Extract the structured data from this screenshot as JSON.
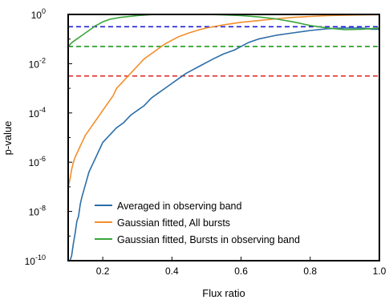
{
  "chart_data": {
    "type": "line",
    "title": "",
    "xlabel": "Flux ratio",
    "ylabel": "p-value",
    "xlim": [
      0.1,
      1.0
    ],
    "ylim_log10": [
      -10,
      0
    ],
    "yscale": "log",
    "grid": false,
    "legend_placement": "lower-right",
    "x_ticks": [
      {
        "value": 0.2,
        "label": "0.2"
      },
      {
        "value": 0.4,
        "label": "0.4"
      },
      {
        "value": 0.6,
        "label": "0.6"
      },
      {
        "value": 0.8,
        "label": "0.8"
      },
      {
        "value": 1.0,
        "label": "1.0"
      }
    ],
    "y_ticks": [
      {
        "exp": 0,
        "base": "10",
        "sup": "0"
      },
      {
        "exp": -2,
        "base": "10",
        "sup": "-2"
      },
      {
        "exp": -4,
        "base": "10",
        "sup": "-4"
      },
      {
        "exp": -6,
        "base": "10",
        "sup": "-6"
      },
      {
        "exp": -8,
        "base": "10",
        "sup": "-8"
      },
      {
        "exp": -10,
        "base": "10",
        "sup": "-10"
      }
    ],
    "series": [
      {
        "name": "Averaged in observing band",
        "color": "#2b6ea8",
        "x": [
          0.105,
          0.11,
          0.115,
          0.12,
          0.125,
          0.13,
          0.135,
          0.14,
          0.15,
          0.16,
          0.17,
          0.18,
          0.19,
          0.2,
          0.22,
          0.24,
          0.26,
          0.28,
          0.3,
          0.32,
          0.34,
          0.36,
          0.38,
          0.4,
          0.42,
          0.44,
          0.46,
          0.48,
          0.5,
          0.52,
          0.55,
          0.58,
          0.6,
          0.62,
          0.65,
          0.7,
          0.75,
          0.8,
          0.85,
          0.9,
          0.95,
          0.98,
          1.0
        ],
        "y_log10": [
          -10.0,
          -9.8,
          -9.3,
          -8.9,
          -8.4,
          -8.2,
          -7.7,
          -7.4,
          -6.9,
          -6.4,
          -6.1,
          -5.8,
          -5.5,
          -5.2,
          -4.9,
          -4.6,
          -4.4,
          -4.1,
          -3.9,
          -3.7,
          -3.4,
          -3.2,
          -3.0,
          -2.8,
          -2.6,
          -2.4,
          -2.25,
          -2.1,
          -1.95,
          -1.8,
          -1.6,
          -1.45,
          -1.3,
          -1.15,
          -1.0,
          -0.85,
          -0.75,
          -0.65,
          -0.58,
          -0.55,
          -0.55,
          -0.6,
          -0.6
        ]
      },
      {
        "name": "Gaussian fitted, All bursts",
        "color": "#f28e2b",
        "x": [
          0.1,
          0.105,
          0.11,
          0.115,
          0.12,
          0.13,
          0.14,
          0.15,
          0.16,
          0.17,
          0.18,
          0.19,
          0.2,
          0.21,
          0.22,
          0.23,
          0.24,
          0.26,
          0.28,
          0.3,
          0.32,
          0.34,
          0.36,
          0.38,
          0.4,
          0.42,
          0.45,
          0.48,
          0.5,
          0.55,
          0.6,
          0.65,
          0.7,
          0.75,
          0.8,
          0.85,
          0.9,
          0.95,
          1.0
        ],
        "y_log10": [
          -7.0,
          -6.7,
          -6.3,
          -6.0,
          -5.8,
          -5.5,
          -5.2,
          -4.9,
          -4.7,
          -4.5,
          -4.3,
          -4.1,
          -3.9,
          -3.7,
          -3.5,
          -3.3,
          -3.0,
          -2.7,
          -2.4,
          -2.1,
          -1.8,
          -1.6,
          -1.4,
          -1.2,
          -1.05,
          -0.9,
          -0.75,
          -0.62,
          -0.55,
          -0.42,
          -0.32,
          -0.25,
          -0.18,
          -0.12,
          -0.08,
          -0.05,
          -0.03,
          -0.02,
          -0.01
        ]
      },
      {
        "name": "Gaussian fitted, Bursts in observing band",
        "color": "#3aa53a",
        "x": [
          0.1,
          0.11,
          0.12,
          0.13,
          0.14,
          0.15,
          0.16,
          0.17,
          0.18,
          0.19,
          0.2,
          0.22,
          0.25,
          0.3,
          0.35,
          0.4,
          0.45,
          0.5,
          0.55,
          0.6,
          0.65,
          0.7,
          0.75,
          0.8,
          0.85,
          0.9,
          0.95,
          1.0
        ],
        "y_log10": [
          -1.3,
          -1.15,
          -1.05,
          -0.95,
          -0.85,
          -0.75,
          -0.65,
          -0.55,
          -0.45,
          -0.38,
          -0.3,
          -0.2,
          -0.12,
          -0.05,
          0.0,
          0.0,
          0.0,
          0.0,
          -0.02,
          -0.05,
          -0.1,
          -0.18,
          -0.3,
          -0.45,
          -0.55,
          -0.62,
          -0.6,
          -0.55
        ]
      }
    ],
    "reference_lines": [
      {
        "color": "#1f1fd6",
        "y_log10": -0.5,
        "style": "dashed"
      },
      {
        "color": "#1e9a1e",
        "y_log10": -1.3,
        "style": "dashed"
      },
      {
        "color": "#e02020",
        "y_log10": -2.5,
        "style": "dashed"
      }
    ]
  }
}
